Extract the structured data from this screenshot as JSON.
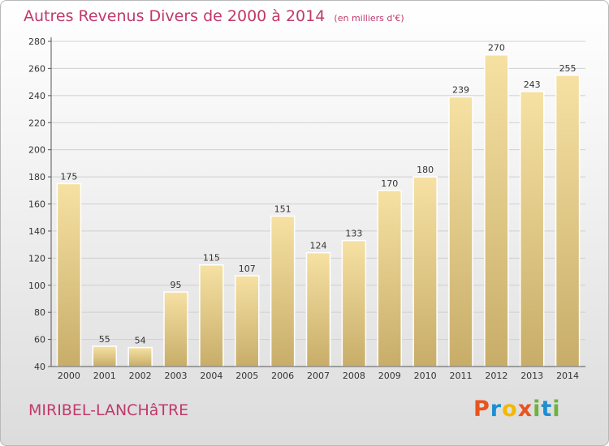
{
  "header": {
    "title": "Autres Revenus Divers de 2000 à 2014",
    "unit": "(en milliers d'€)"
  },
  "footer": {
    "place": "MIRIBEL-LANCHâTRE",
    "logo_letters": [
      "P",
      "r",
      "o",
      "x",
      "i",
      "t",
      "i"
    ]
  },
  "colors": {
    "title": "#c0396b",
    "bar_light": "#f6e1a3",
    "bar_dark": "#c8ad69",
    "logo": [
      "#e8531f",
      "#1d8fd1",
      "#f2b807",
      "#e8531f",
      "#6db33f",
      "#1d8fd1",
      "#6db33f"
    ]
  },
  "chart_data": {
    "type": "bar",
    "title": "Autres Revenus Divers de 2000 à 2014",
    "subtitle": "(en milliers d'€)",
    "categories": [
      "2000",
      "2001",
      "2002",
      "2003",
      "2004",
      "2005",
      "2006",
      "2007",
      "2008",
      "2009",
      "2010",
      "2011",
      "2012",
      "2013",
      "2014"
    ],
    "values": [
      175,
      55,
      54,
      95,
      115,
      107,
      151,
      124,
      133,
      170,
      180,
      239,
      270,
      243,
      255
    ],
    "ylim": [
      40,
      280
    ],
    "yticks": [
      40,
      60,
      80,
      100,
      120,
      140,
      160,
      180,
      200,
      220,
      240,
      260,
      280
    ],
    "grid": true,
    "xlabel": "",
    "ylabel": ""
  }
}
